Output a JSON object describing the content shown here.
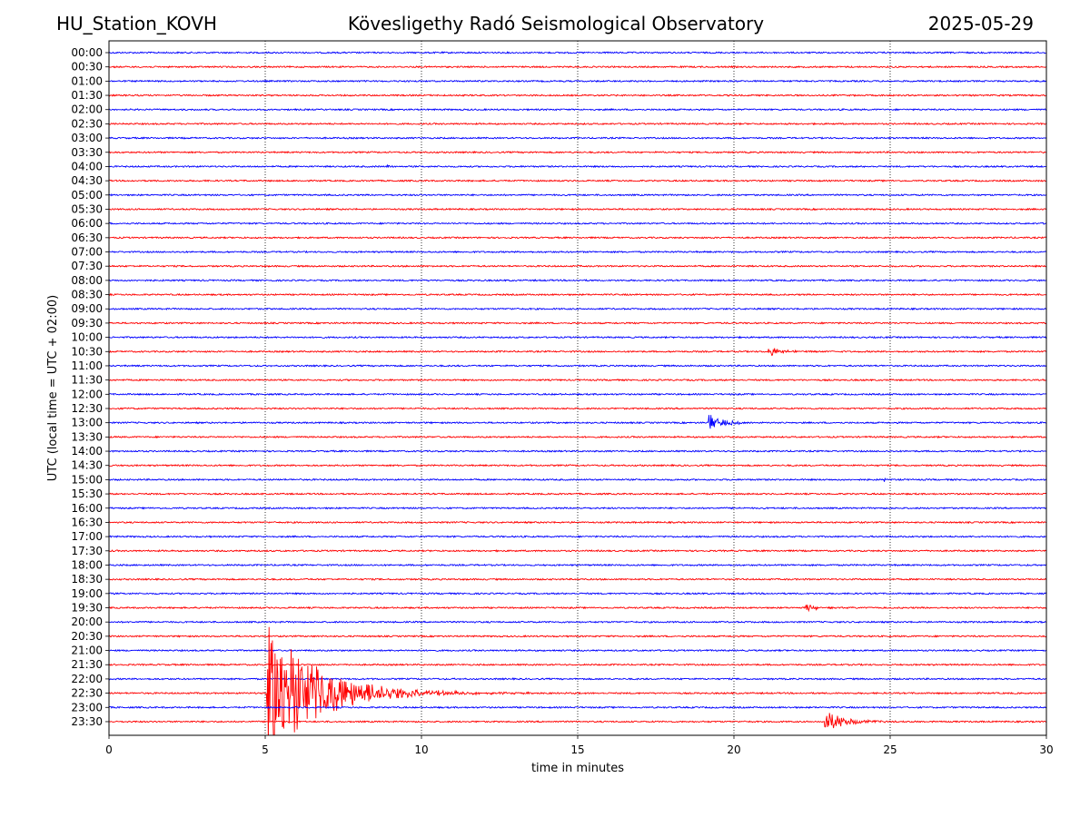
{
  "header": {
    "station": "HU_Station_KOVH",
    "observatory": "Kövesligethy Radó Seismological Observatory",
    "date": "2025-05-29"
  },
  "chart_data": {
    "type": "line",
    "title": "Kövesligethy Radó Seismological Observatory",
    "xlabel": "time in minutes",
    "ylabel": "UTC (local time = UTC + 02:00)",
    "xlim": [
      0,
      30
    ],
    "x_ticks": [
      0,
      5,
      10,
      15,
      20,
      25,
      30
    ],
    "grid": "vertical dotted lines at x ticks",
    "row_labels": [
      "00:00",
      "00:30",
      "01:00",
      "01:30",
      "02:00",
      "02:30",
      "03:00",
      "03:30",
      "04:00",
      "04:30",
      "05:00",
      "05:30",
      "06:00",
      "06:30",
      "07:00",
      "07:30",
      "08:00",
      "08:30",
      "09:00",
      "09:30",
      "10:00",
      "10:30",
      "11:00",
      "11:30",
      "12:00",
      "12:30",
      "13:00",
      "13:30",
      "14:00",
      "14:30",
      "15:00",
      "15:30",
      "16:00",
      "16:30",
      "17:00",
      "17:30",
      "18:00",
      "18:30",
      "19:00",
      "19:30",
      "20:00",
      "20:30",
      "21:00",
      "21:30",
      "22:00",
      "22:30",
      "23:00",
      "23:30"
    ],
    "row_colors": [
      "#0000ff",
      "#ff0000"
    ],
    "events": [
      {
        "row": "04:00",
        "minute": 8.9,
        "amplitude": 0.15,
        "duration_min": 0.2
      },
      {
        "row": "10:30",
        "minute": 21.1,
        "amplitude": 0.4,
        "duration_min": 0.8
      },
      {
        "row": "13:00",
        "minute": 19.2,
        "amplitude": 0.6,
        "duration_min": 1.0
      },
      {
        "row": "15:00",
        "minute": 24.8,
        "amplitude": 0.15,
        "duration_min": 0.2
      },
      {
        "row": "19:30",
        "minute": 22.3,
        "amplitude": 0.25,
        "duration_min": 0.9
      },
      {
        "row": "22:30",
        "minute": 5.05,
        "amplitude": 5.0,
        "duration_min": 3.5
      },
      {
        "row": "23:30",
        "minute": 22.9,
        "amplitude": 0.8,
        "duration_min": 1.3
      }
    ]
  }
}
